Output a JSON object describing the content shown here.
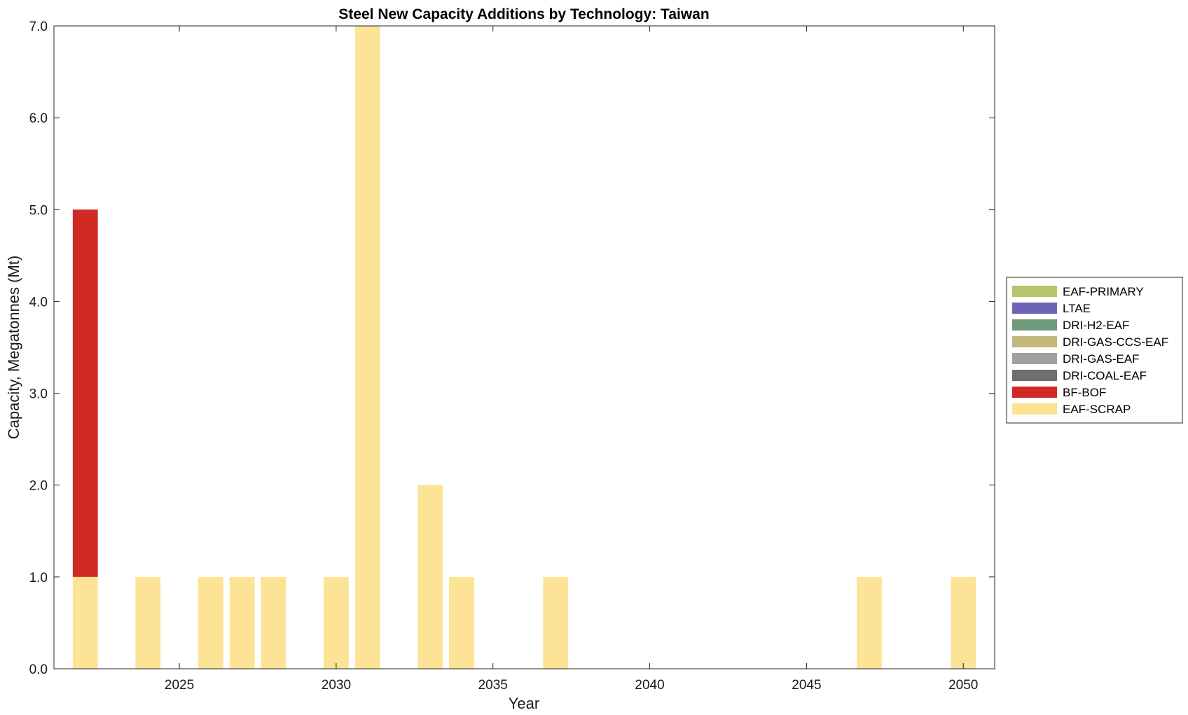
{
  "chart_data": {
    "type": "bar",
    "stacked": true,
    "title": "Steel New Capacity Additions by Technology: Taiwan",
    "xlabel": "Year",
    "ylabel": "Capacity, Megatonnes (Mt)",
    "xlim": [
      2021,
      2051
    ],
    "ylim": [
      0,
      7
    ],
    "x_ticks": [
      2025,
      2030,
      2035,
      2040,
      2045,
      2050
    ],
    "y_ticks": [
      0,
      1,
      2,
      3,
      4,
      5,
      6,
      7
    ],
    "y_tick_labels": [
      "0.0",
      "1.0",
      "2.0",
      "3.0",
      "4.0",
      "5.0",
      "6.0",
      "7.0"
    ],
    "grid": false,
    "legend_position": "outside-right",
    "x": [
      2022,
      2024,
      2026,
      2027,
      2028,
      2030,
      2031,
      2033,
      2034,
      2037,
      2047,
      2050
    ],
    "series": [
      {
        "name": "EAF-SCRAP",
        "color": "#FDE396",
        "values": [
          1,
          1,
          1,
          1,
          1,
          1,
          7,
          2,
          1,
          1,
          1,
          1
        ]
      },
      {
        "name": "BF-BOF",
        "color": "#D12A25",
        "values": [
          4,
          0,
          0,
          0,
          0,
          0,
          0,
          0,
          0,
          0,
          0,
          0
        ]
      },
      {
        "name": "DRI-COAL-EAF",
        "color": "#6E6E6E",
        "values": [
          0,
          0,
          0,
          0,
          0,
          0,
          0,
          0,
          0,
          0,
          0,
          0
        ]
      },
      {
        "name": "DRI-GAS-EAF",
        "color": "#A0A0A0",
        "values": [
          0,
          0,
          0,
          0,
          0,
          0,
          0,
          0,
          0,
          0,
          0,
          0
        ]
      },
      {
        "name": "DRI-GAS-CCS-EAF",
        "color": "#C2B77A",
        "values": [
          0,
          0,
          0,
          0,
          0,
          0,
          0,
          0,
          0,
          0,
          0,
          0
        ]
      },
      {
        "name": "DRI-H2-EAF",
        "color": "#709A7A",
        "values": [
          0,
          0,
          0,
          0,
          0,
          0,
          0,
          0,
          0,
          0,
          0,
          0
        ]
      },
      {
        "name": "LTAE",
        "color": "#6F63B3",
        "values": [
          0,
          0,
          0,
          0,
          0,
          0,
          0,
          0,
          0,
          0,
          0,
          0
        ]
      },
      {
        "name": "EAF-PRIMARY",
        "color": "#B9C46C",
        "values": [
          0,
          0,
          0,
          0,
          0,
          0,
          0,
          0,
          0,
          0,
          0,
          0
        ]
      }
    ],
    "legend_order": [
      "EAF-PRIMARY",
      "LTAE",
      "DRI-H2-EAF",
      "DRI-GAS-CCS-EAF",
      "DRI-GAS-EAF",
      "DRI-COAL-EAF",
      "BF-BOF",
      "EAF-SCRAP"
    ]
  }
}
